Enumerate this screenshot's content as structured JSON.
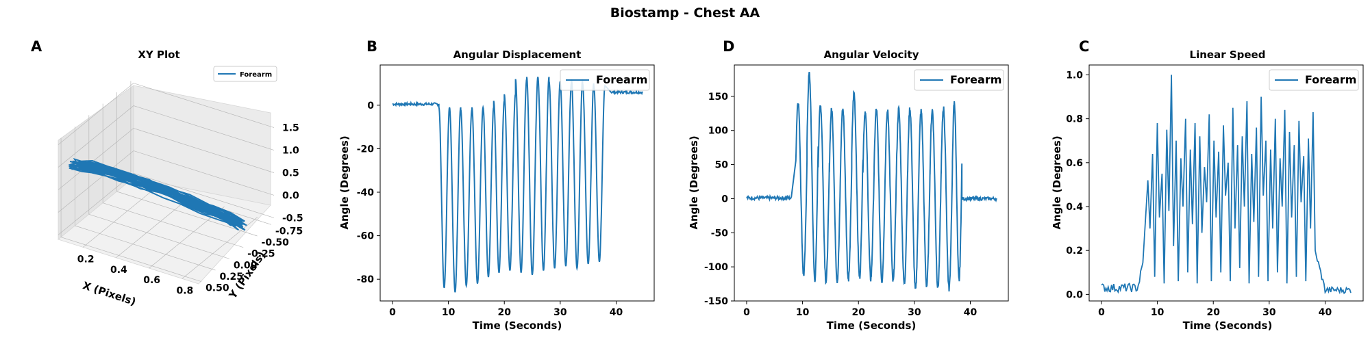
{
  "figure": {
    "suptitle": "Biostamp - Chest AA"
  },
  "colors": {
    "series": "#1f77b4"
  },
  "chart_data": [
    {
      "id": "xy",
      "panel_letter": "A",
      "type": "line3d",
      "title": "XY Plot",
      "xlabel": "X (Pixels)",
      "ylabel": "Y (Pixels)",
      "zlabel": "",
      "x_ticks": [
        "0.2",
        "0.4",
        "0.6",
        "0.8"
      ],
      "y_ticks": [
        "-0.75",
        "-0.50",
        "-0.25",
        "0.00",
        "0.25",
        "0.50"
      ],
      "z_ticks": [
        "-0.5",
        "0.0",
        "0.5",
        "1.0",
        "1.5"
      ],
      "xlim": [
        0.05,
        0.9
      ],
      "ylim": [
        -0.8,
        0.55
      ],
      "zlim": [
        -0.6,
        1.6
      ],
      "legend": {
        "location": "upper-right",
        "entries": [
          "Forearm"
        ]
      },
      "series": [
        {
          "name": "Forearm",
          "note_points": "x, y, z trajectory",
          "points": [
            [
              0.12,
              0.4,
              0.95
            ],
            [
              0.18,
              0.3,
              0.9
            ],
            [
              0.26,
              0.2,
              0.78
            ],
            [
              0.34,
              0.1,
              0.62
            ],
            [
              0.42,
              0.0,
              0.45
            ],
            [
              0.5,
              -0.08,
              0.3
            ],
            [
              0.58,
              -0.16,
              0.15
            ],
            [
              0.66,
              -0.24,
              0.0
            ],
            [
              0.74,
              -0.32,
              -0.15
            ],
            [
              0.8,
              -0.38,
              -0.28
            ],
            [
              0.84,
              -0.42,
              -0.36
            ],
            [
              0.78,
              -0.36,
              -0.2
            ],
            [
              0.7,
              -0.28,
              -0.04
            ],
            [
              0.6,
              -0.18,
              0.14
            ],
            [
              0.5,
              -0.1,
              0.3
            ],
            [
              0.4,
              0.02,
              0.5
            ],
            [
              0.3,
              0.14,
              0.68
            ],
            [
              0.2,
              0.26,
              0.84
            ],
            [
              0.14,
              0.36,
              0.94
            ],
            [
              0.1,
              0.42,
              0.98
            ]
          ]
        }
      ]
    },
    {
      "id": "angdisp",
      "panel_letter": "B",
      "type": "line",
      "title": "Angular Displacement",
      "xlabel": "Time (Seconds)",
      "ylabel": "Angle (Degrees)",
      "xlim": [
        -2.2,
        46.8
      ],
      "ylim": [
        -90,
        18.5
      ],
      "x_ticks": [
        0,
        10,
        20,
        30,
        40
      ],
      "y_ticks": [
        -80,
        -60,
        -40,
        -20,
        0
      ],
      "legend": {
        "location": "upper-right",
        "entries": [
          "Forearm"
        ]
      },
      "series": [
        {
          "name": "Forearm",
          "baseline_start": {
            "t": [
              0,
              8.3
            ],
            "value": 0.5
          },
          "baseline_end": {
            "t": [
              39.2,
              44.8
            ],
            "value": 6
          },
          "cycles": [
            {
              "start": 8.3,
              "end": 10.2,
              "min": -84,
              "max": -1
            },
            {
              "start": 10.2,
              "end": 12.2,
              "min": -86,
              "max": -1
            },
            {
              "start": 12.2,
              "end": 14.2,
              "min": -83,
              "max": -2
            },
            {
              "start": 14.2,
              "end": 16.2,
              "min": -82,
              "max": -1
            },
            {
              "start": 16.2,
              "end": 18.1,
              "min": -79,
              "max": -1
            },
            {
              "start": 18.1,
              "end": 20.0,
              "min": -77,
              "max": 2
            },
            {
              "start": 20.0,
              "end": 22.0,
              "min": -76,
              "max": 5
            },
            {
              "start": 22.0,
              "end": 24.0,
              "min": -77,
              "max": 12
            },
            {
              "start": 24.0,
              "end": 26.0,
              "min": -78,
              "max": 13
            },
            {
              "start": 26.0,
              "end": 28.0,
              "min": -76,
              "max": 13
            },
            {
              "start": 28.0,
              "end": 30.0,
              "min": -75,
              "max": 11
            },
            {
              "start": 30.0,
              "end": 32.0,
              "min": -74,
              "max": 10
            },
            {
              "start": 32.0,
              "end": 34.0,
              "min": -75,
              "max": 12
            },
            {
              "start": 34.0,
              "end": 36.0,
              "min": -73,
              "max": 10
            },
            {
              "start": 36.0,
              "end": 38.0,
              "min": -72,
              "max": 9
            }
          ]
        }
      ]
    },
    {
      "id": "angvel",
      "panel_letter": "D",
      "type": "line",
      "title": "Angular Velocity",
      "xlabel": "Time (Seconds)",
      "ylabel": "Angle (Degrees)",
      "xlim": [
        -2.2,
        46.8
      ],
      "ylim": [
        -150,
        196
      ],
      "x_ticks": [
        0,
        10,
        20,
        30,
        40
      ],
      "y_ticks": [
        -150,
        -100,
        -50,
        0,
        50,
        100,
        150
      ],
      "legend": {
        "location": "upper-right",
        "entries": [
          "Forearm"
        ]
      },
      "series": [
        {
          "name": "Forearm",
          "baseline_start": {
            "t": [
              0,
              8.0
            ],
            "value": 1
          },
          "baseline_end": {
            "t": [
              38.5,
              44.8
            ],
            "value": 0
          },
          "cycles": [
            {
              "start": 8.8,
              "end": 10.8,
              "min": -112,
              "max": 143
            },
            {
              "start": 10.8,
              "end": 12.8,
              "min": -118,
              "max": 183
            },
            {
              "start": 12.8,
              "end": 14.8,
              "min": -121,
              "max": 138
            },
            {
              "start": 14.8,
              "end": 16.8,
              "min": -120,
              "max": 130
            },
            {
              "start": 16.8,
              "end": 18.8,
              "min": -118,
              "max": 132
            },
            {
              "start": 18.8,
              "end": 20.8,
              "min": -115,
              "max": 155
            },
            {
              "start": 20.8,
              "end": 22.8,
              "min": -118,
              "max": 128
            },
            {
              "start": 22.8,
              "end": 24.8,
              "min": -120,
              "max": 130
            },
            {
              "start": 24.8,
              "end": 26.8,
              "min": -122,
              "max": 128
            },
            {
              "start": 26.8,
              "end": 28.8,
              "min": -125,
              "max": 131
            },
            {
              "start": 28.8,
              "end": 30.8,
              "min": -135,
              "max": 132
            },
            {
              "start": 30.8,
              "end": 32.8,
              "min": -128,
              "max": 128
            },
            {
              "start": 32.8,
              "end": 34.8,
              "min": -130,
              "max": 130
            },
            {
              "start": 34.8,
              "end": 36.8,
              "min": -132,
              "max": 133
            },
            {
              "start": 36.8,
              "end": 38.5,
              "min": -120,
              "max": 140
            }
          ]
        }
      ]
    },
    {
      "id": "linspeed",
      "panel_letter": "C",
      "type": "line",
      "title": "Linear Speed",
      "xlabel": "Time (Seconds)",
      "ylabel": "Angle (Degrees)",
      "xlim": [
        -2.2,
        46.8
      ],
      "ylim": [
        -0.03,
        1.045
      ],
      "x_ticks": [
        0,
        10,
        20,
        30,
        40
      ],
      "y_ticks": [
        "0.0",
        "0.2",
        "0.4",
        "0.6",
        "0.8",
        "1.0"
      ],
      "legend": {
        "location": "upper-right",
        "entries": [
          "Forearm"
        ]
      },
      "series": [
        {
          "name": "Forearm",
          "baseline_start": {
            "t": [
              0,
              7.6
            ],
            "value": 0.03
          },
          "baseline_end": {
            "t": [
              38.6,
              44.8
            ],
            "value": 0.02
          },
          "peaks": [
            0.52,
            0.64,
            0.78,
            0.55,
            0.75,
            1.0,
            0.7,
            0.62,
            0.8,
            0.66,
            0.78,
            0.72,
            0.58,
            0.82,
            0.7,
            0.65,
            0.77,
            0.6,
            0.85,
            0.68,
            0.72,
            0.88,
            0.64,
            0.76,
            0.9,
            0.7,
            0.66,
            0.8,
            0.62,
            0.84,
            0.74,
            0.68,
            0.79,
            0.63,
            0.71,
            0.83
          ],
          "troughs": [
            0.3,
            0.08,
            0.35,
            0.05,
            0.38,
            0.22,
            0.06,
            0.4,
            0.1,
            0.32,
            0.05,
            0.28,
            0.42,
            0.06,
            0.35,
            0.1,
            0.45,
            0.06,
            0.3,
            0.12,
            0.4,
            0.05,
            0.33,
            0.08,
            0.45,
            0.06,
            0.3,
            0.1,
            0.4,
            0.05,
            0.35,
            0.08,
            0.42,
            0.06,
            0.3,
            0.2
          ]
        }
      ]
    }
  ]
}
